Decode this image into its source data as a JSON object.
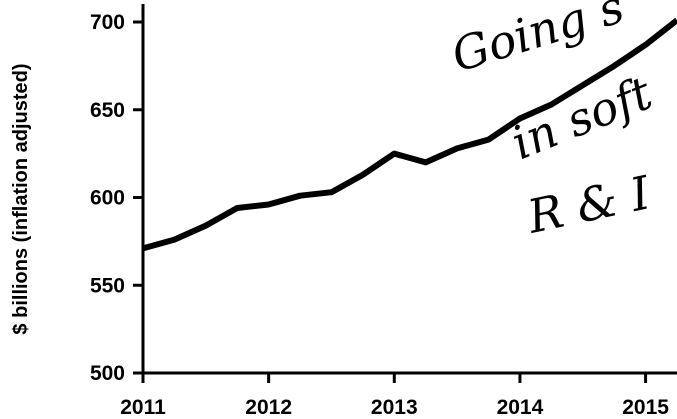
{
  "chart_data": {
    "type": "line",
    "title": "",
    "xlabel": "",
    "ylabel": "$ billions (inflation adjusted)",
    "xlim": [
      2011,
      2015.25
    ],
    "ylim": [
      500,
      710
    ],
    "x_ticks": [
      "2011",
      "2012",
      "2013",
      "2014",
      "2015"
    ],
    "y_ticks": [
      "500",
      "550",
      "600",
      "650",
      "700"
    ],
    "grid": false,
    "line_color": "#000000",
    "series": [
      {
        "x": [
          2011.0,
          2011.25,
          2011.5,
          2011.75,
          2012.0,
          2012.25,
          2012.5,
          2012.75,
          2013.0,
          2013.25,
          2013.5,
          2013.75,
          2014.0,
          2014.25,
          2014.5,
          2014.75,
          2015.0,
          2015.25
        ],
        "y": [
          571,
          576,
          584,
          594,
          596,
          601,
          603,
          613,
          625,
          620,
          628,
          633,
          645,
          653,
          664,
          675,
          687,
          701
        ]
      }
    ],
    "annotation": {
      "lines": [
        "Going s",
        "in soft",
        "R & I"
      ],
      "style": "handwritten"
    }
  }
}
